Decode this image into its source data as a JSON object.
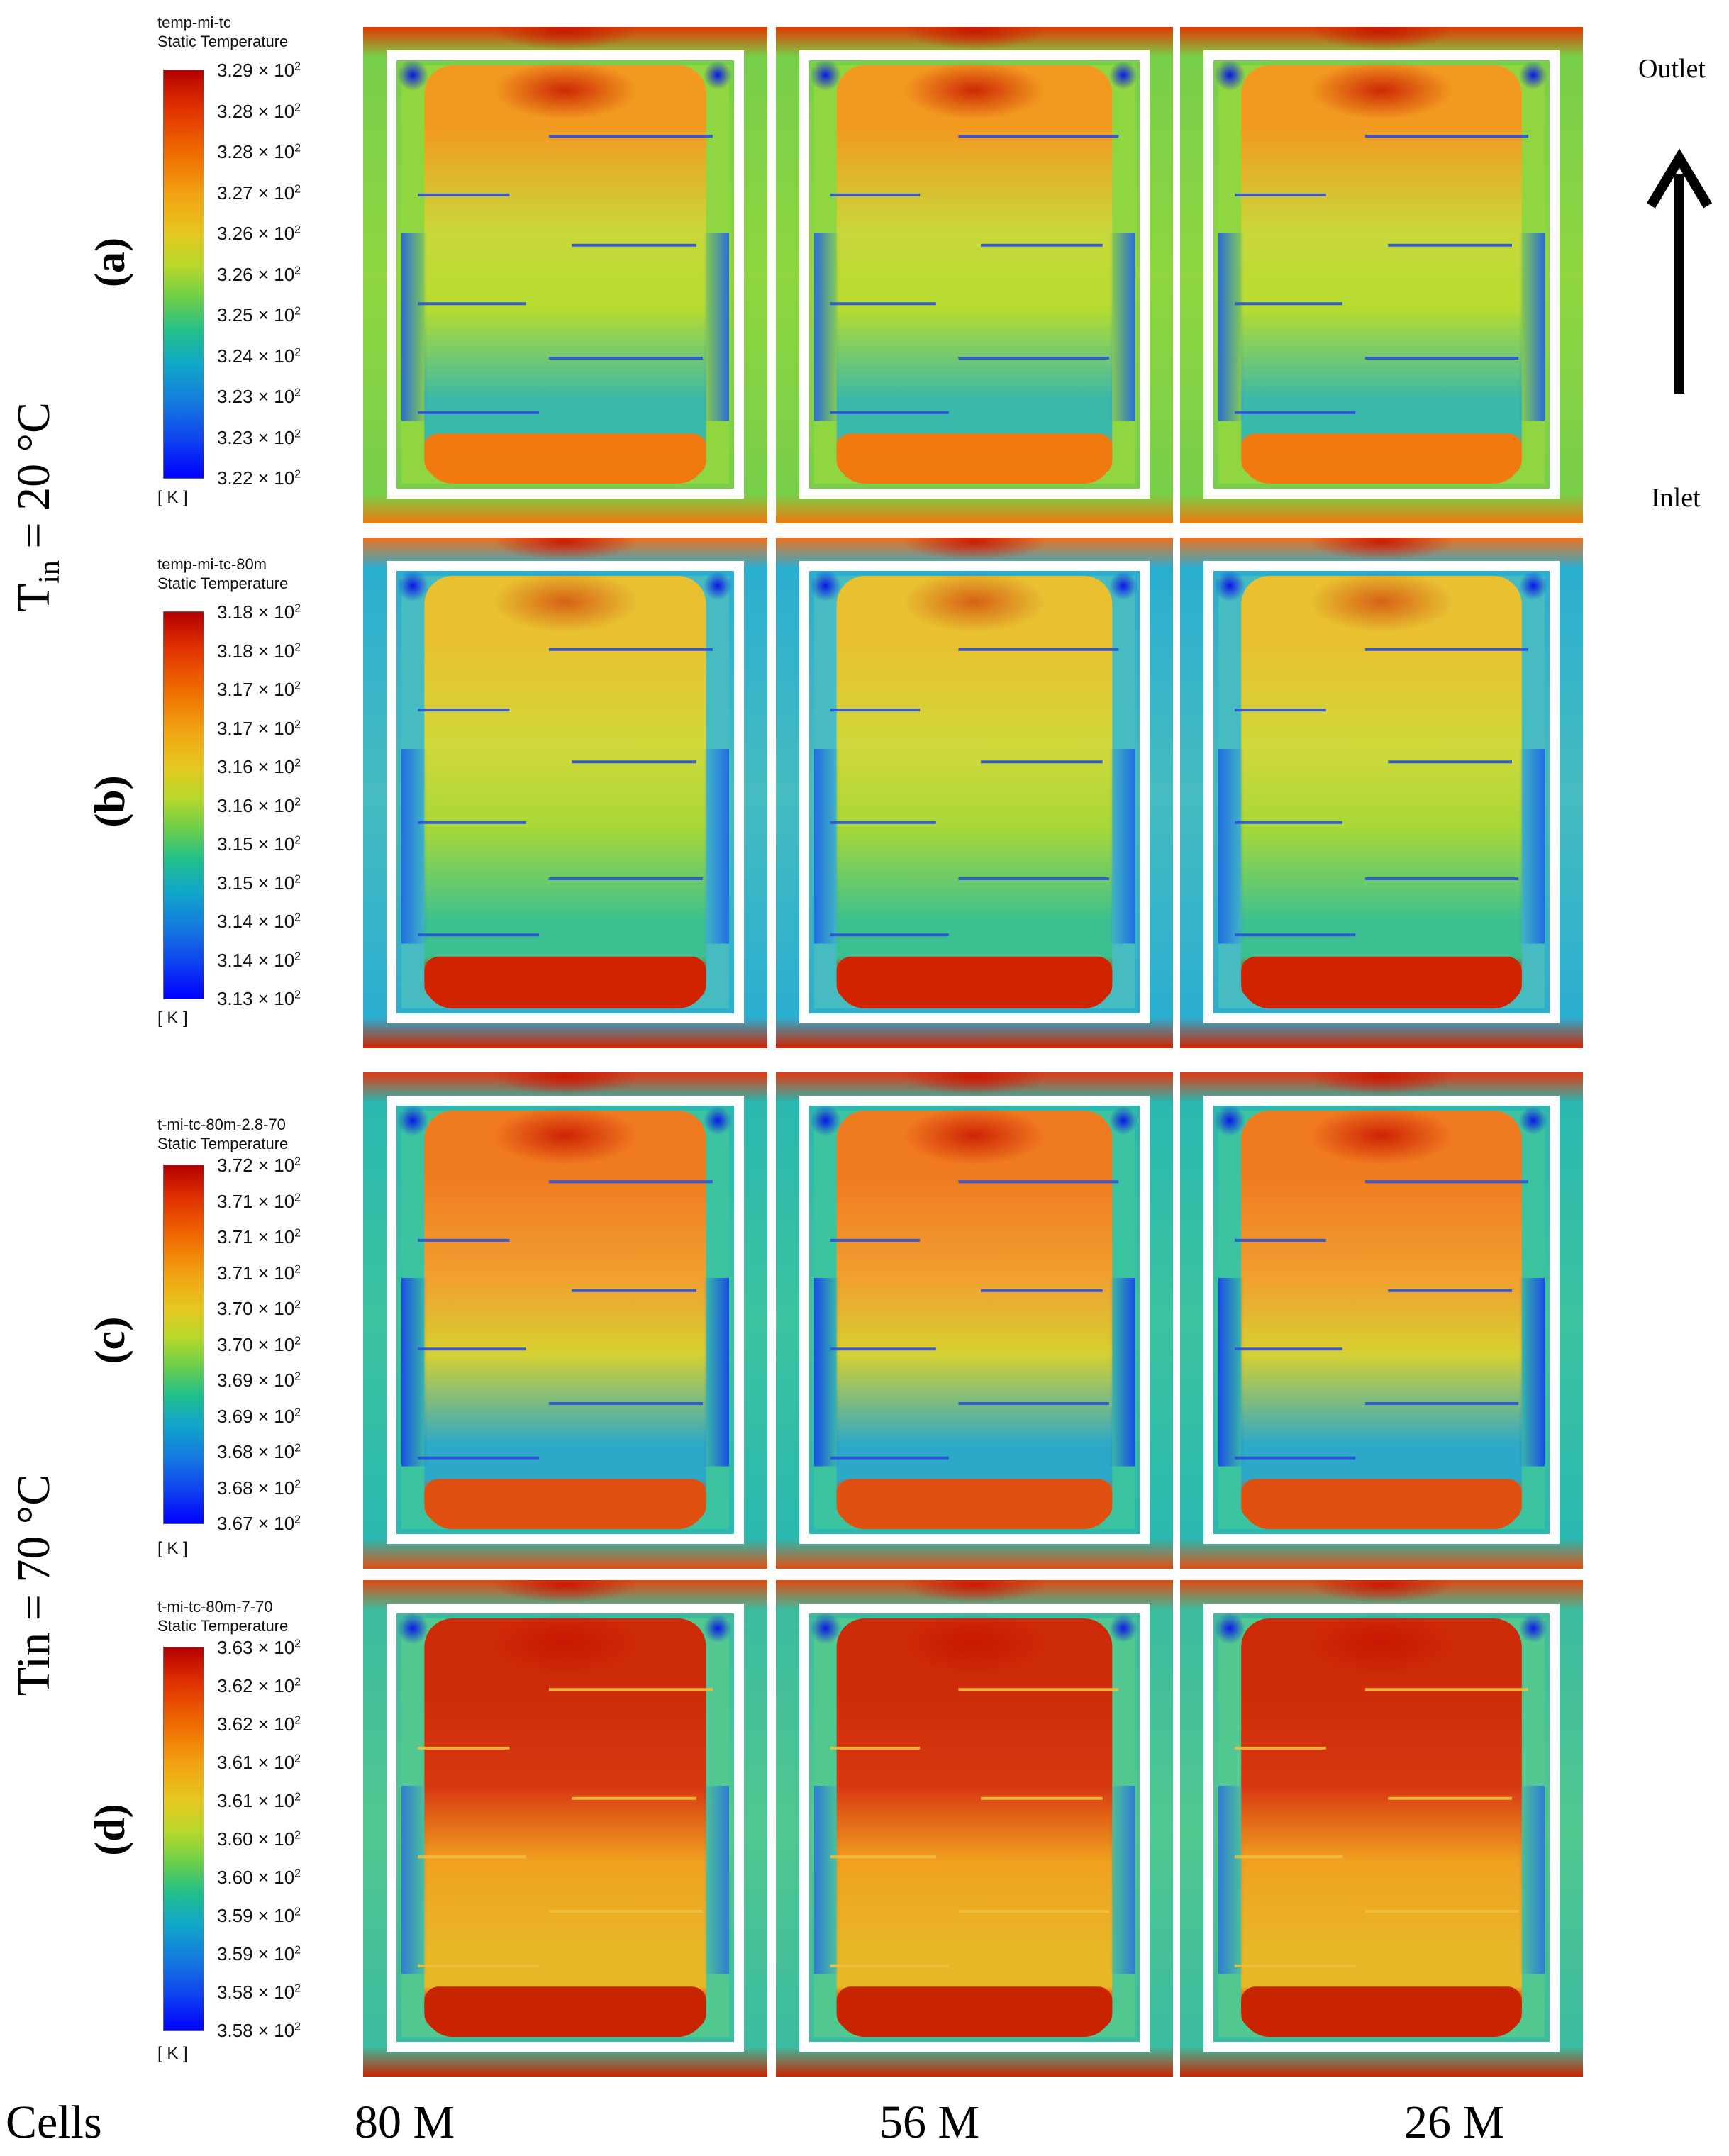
{
  "row_labels": [
    "(a)",
    "(b)",
    "(c)",
    "(d)"
  ],
  "inlet_temperatures": {
    "top_group": {
      "symbol": "T",
      "subscript": "in",
      "value": " = 20 °C"
    },
    "bottom_group": {
      "symbol": "Tin",
      "value": " = 70 °C"
    }
  },
  "flow": {
    "outlet": "Outlet",
    "inlet": "Inlet"
  },
  "cells": {
    "label": "Cells",
    "values": [
      "80 M",
      "56 M",
      "26 M"
    ]
  },
  "legends": [
    {
      "name": "temp-mi-tc",
      "quantity": "Static Temperature",
      "unit": "[ K ]",
      "ticks": [
        "3.29 × 10",
        "3.28 × 10",
        "3.28 × 10",
        "3.27 × 10",
        "3.26 × 10",
        "3.26 × 10",
        "3.25 × 10",
        "3.24 × 10",
        "3.23 × 10",
        "3.23 × 10",
        "3.22 × 10"
      ]
    },
    {
      "name": "temp-mi-tc-80m",
      "quantity": "Static Temperature",
      "unit": "[ K ]",
      "ticks": [
        "3.18 × 10",
        "3.18 × 10",
        "3.17 × 10",
        "3.17 × 10",
        "3.16 × 10",
        "3.16 × 10",
        "3.15 × 10",
        "3.15 × 10",
        "3.14 × 10",
        "3.14 × 10",
        "3.13 × 10"
      ]
    },
    {
      "name": "t-mi-tc-80m-2.8-70",
      "quantity": "Static Temperature",
      "unit": "[ K ]",
      "ticks": [
        "3.72 × 10",
        "3.71 × 10",
        "3.71 × 10",
        "3.71 × 10",
        "3.70 × 10",
        "3.70 × 10",
        "3.69 × 10",
        "3.69 × 10",
        "3.68 × 10",
        "3.68 × 10",
        "3.67 × 10"
      ]
    },
    {
      "name": "t-mi-tc-80m-7-70",
      "quantity": "Static Temperature",
      "unit": "[ K ]",
      "ticks": [
        "3.63 × 10",
        "3.62 × 10",
        "3.62 × 10",
        "3.61 × 10",
        "3.61 × 10",
        "3.60 × 10",
        "3.60 × 10",
        "3.59 × 10",
        "3.59 × 10",
        "3.58 × 10",
        "3.58 × 10"
      ]
    }
  ],
  "tick_exponent": "2",
  "colors": {
    "hot": "#c81e00",
    "cold": "#0a1ef0",
    "frame": "#ffffff"
  }
}
